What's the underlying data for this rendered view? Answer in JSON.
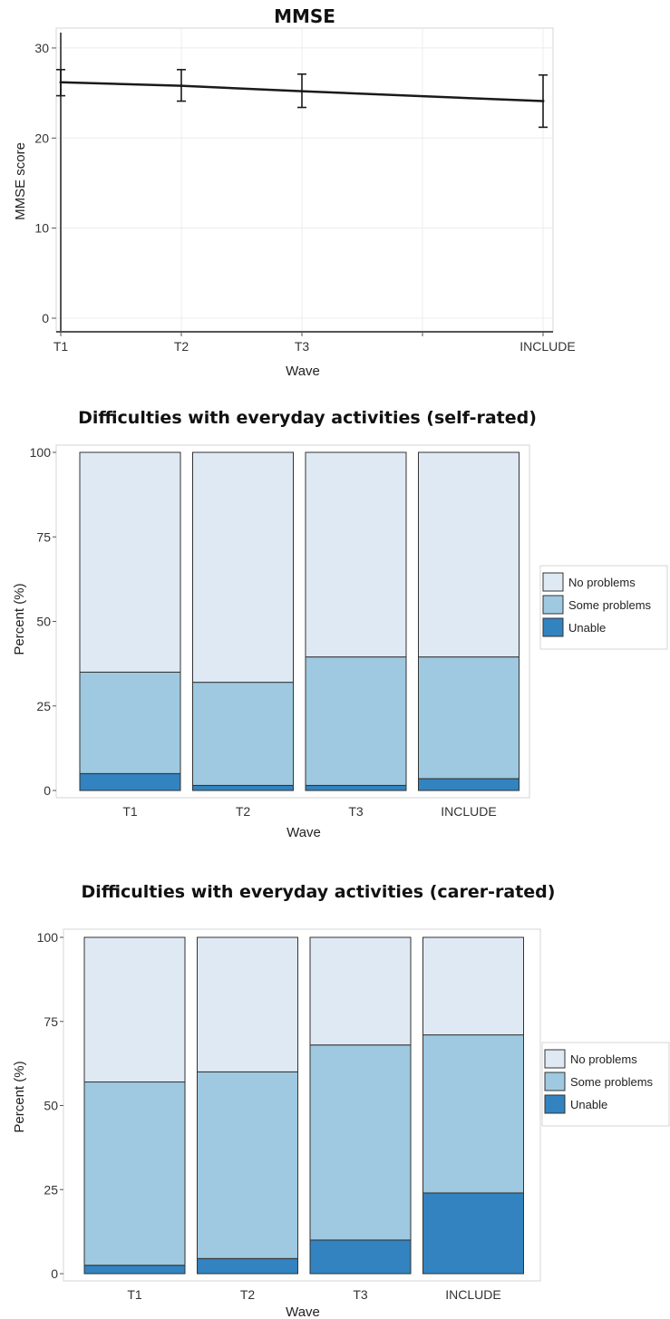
{
  "colors": {
    "no_problems": "#dfe9f4",
    "some_problems": "#9ec9e0",
    "unable": "#3283bf",
    "line": "#1a1a1a",
    "grid": "#ececec"
  },
  "chart_data": [
    {
      "type": "line",
      "title": "MMSE",
      "xlabel": "Wave",
      "ylabel": "MMSE score",
      "categories": [
        "T1",
        "T2",
        "T3",
        "INCLUDE"
      ],
      "x": [
        0,
        1,
        2,
        4
      ],
      "xlim": [
        0,
        4
      ],
      "ylim": [
        0,
        31
      ],
      "yticks": [
        0,
        10,
        20,
        30
      ],
      "grid": true,
      "series": [
        {
          "values": [
            26.2,
            25.8,
            25.2,
            24.1
          ],
          "error_low": [
            24.7,
            24.1,
            23.4,
            21.2
          ],
          "error_high": [
            27.6,
            27.6,
            27.1,
            27.0
          ]
        }
      ]
    },
    {
      "type": "bar",
      "stacked": true,
      "title": "Difficulties with everyday activities (self-rated)",
      "xlabel": "Wave",
      "ylabel": "Percent (%)",
      "categories": [
        "T1",
        "T2",
        "T3",
        "INCLUDE"
      ],
      "ylim": [
        0,
        100
      ],
      "yticks": [
        0,
        25,
        50,
        75,
        100
      ],
      "legend_position": "right",
      "series": [
        {
          "name": "Unable",
          "values": [
            5,
            1.5,
            1.5,
            3.5
          ]
        },
        {
          "name": "Some problems",
          "values": [
            30,
            30.5,
            38,
            36
          ]
        },
        {
          "name": "No problems",
          "values": [
            65,
            68,
            60.5,
            60.5
          ]
        }
      ]
    },
    {
      "type": "bar",
      "stacked": true,
      "title": "Difficulties with everyday activities (carer-rated)",
      "xlabel": "Wave",
      "ylabel": "Percent (%)",
      "categories": [
        "T1",
        "T2",
        "T3",
        "INCLUDE"
      ],
      "ylim": [
        0,
        100
      ],
      "yticks": [
        0,
        25,
        50,
        75,
        100
      ],
      "legend_position": "right",
      "series": [
        {
          "name": "Unable",
          "values": [
            2.5,
            4.5,
            10,
            24
          ]
        },
        {
          "name": "Some problems",
          "values": [
            54.5,
            55.5,
            58,
            47
          ]
        },
        {
          "name": "No problems",
          "values": [
            43,
            40,
            32,
            29
          ]
        }
      ]
    }
  ]
}
